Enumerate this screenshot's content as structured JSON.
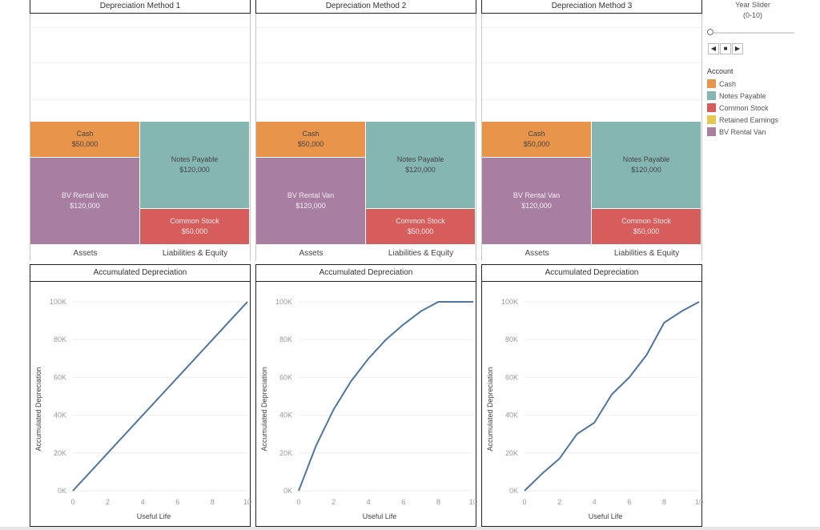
{
  "colors": {
    "cash": "#e8944a",
    "notes_payable": "#86b6b2",
    "common_stock": "#d75c5c",
    "retained_earnings": "#e7c653",
    "bv_rental_van": "#a87ea1",
    "line": "#4e73a5"
  },
  "balance_sheets": [
    {
      "title": "Depreciation Method 1",
      "assets_label": "Assets",
      "liab_label": "Liabilities & Equity",
      "cash": {
        "name": "Cash",
        "value": "$50,000"
      },
      "van": {
        "name": "BV Rental Van",
        "value": "$120,000"
      },
      "notes": {
        "name": "Notes Payable",
        "value": "$120,000"
      },
      "stock": {
        "name": "Common Stock",
        "value": "$50,000"
      }
    },
    {
      "title": "Depreciation Method 2",
      "assets_label": "Assets",
      "liab_label": "Liabilities & Equity",
      "cash": {
        "name": "Cash",
        "value": "$50,000"
      },
      "van": {
        "name": "BV Rental Van",
        "value": "$120,000"
      },
      "notes": {
        "name": "Notes Payable",
        "value": "$120,000"
      },
      "stock": {
        "name": "Common Stock",
        "value": "$50,000"
      }
    },
    {
      "title": "Depreciation Method 3",
      "assets_label": "Assets",
      "liab_label": "Liabilities & Equity",
      "cash": {
        "name": "Cash",
        "value": "$50,000"
      },
      "van": {
        "name": "BV Rental Van",
        "value": "$120,000"
      },
      "notes": {
        "name": "Notes Payable",
        "value": "$120,000"
      },
      "stock": {
        "name": "Common Stock",
        "value": "$50,000"
      }
    }
  ],
  "slider": {
    "title_line1": "Year Slider",
    "title_line2": "(0-10)",
    "value": 0,
    "min": 0,
    "max": 10
  },
  "legend": {
    "title": "Account",
    "items": [
      {
        "label": "Cash",
        "color": "#e8944a"
      },
      {
        "label": "Notes Payable",
        "color": "#86b6b2"
      },
      {
        "label": "Common Stock",
        "color": "#d75c5c"
      },
      {
        "label": "Retained Earnings",
        "color": "#e7c653"
      },
      {
        "label": "BV Rental Van",
        "color": "#a87ea1"
      }
    ]
  },
  "chart_data": [
    {
      "type": "line",
      "title": "Accumulated Depreciation",
      "xlabel": "Useful Life",
      "ylabel": "Accumulated Depreciation",
      "xlim": [
        0,
        10
      ],
      "ylim": [
        0,
        100000
      ],
      "x_ticks": [
        "0",
        "2",
        "4",
        "6",
        "8",
        "10"
      ],
      "y_ticks": [
        "0K",
        "20K",
        "40K",
        "60K",
        "80K",
        "100K"
      ],
      "grid": true,
      "series": [
        {
          "x": [
            0,
            1,
            2,
            3,
            4,
            5,
            6,
            7,
            8,
            9,
            10
          ],
          "y": [
            0,
            10000,
            20000,
            30000,
            40000,
            50000,
            60000,
            70000,
            80000,
            90000,
            100000
          ]
        }
      ]
    },
    {
      "type": "line",
      "title": "Accumulated Depreciation",
      "xlabel": "Useful Life",
      "ylabel": "Accumulated Depreciation",
      "xlim": [
        0,
        10
      ],
      "ylim": [
        0,
        100000
      ],
      "x_ticks": [
        "0",
        "2",
        "4",
        "6",
        "8",
        "10"
      ],
      "y_ticks": [
        "0K",
        "20K",
        "40K",
        "60K",
        "80K",
        "100K"
      ],
      "grid": true,
      "series": [
        {
          "x": [
            0,
            1,
            2,
            3,
            4,
            5,
            6,
            7,
            8,
            9,
            10
          ],
          "y": [
            0,
            24000,
            43000,
            58000,
            70000,
            80000,
            88000,
            95000,
            100000,
            100000,
            100000
          ]
        }
      ]
    },
    {
      "type": "line",
      "title": "Accumulated Depreciation",
      "xlabel": "Useful Life",
      "ylabel": "Accumulated Depreciation",
      "xlim": [
        0,
        10
      ],
      "ylim": [
        0,
        100000
      ],
      "x_ticks": [
        "0",
        "2",
        "4",
        "6",
        "8",
        "10"
      ],
      "y_ticks": [
        "0K",
        "20K",
        "40K",
        "60K",
        "80K",
        "100K"
      ],
      "grid": true,
      "series": [
        {
          "x": [
            0,
            1,
            2,
            3,
            4,
            5,
            6,
            7,
            8,
            9,
            10
          ],
          "y": [
            0,
            9000,
            17000,
            30000,
            36000,
            51000,
            60000,
            72000,
            89000,
            95000,
            100000
          ]
        }
      ]
    }
  ]
}
